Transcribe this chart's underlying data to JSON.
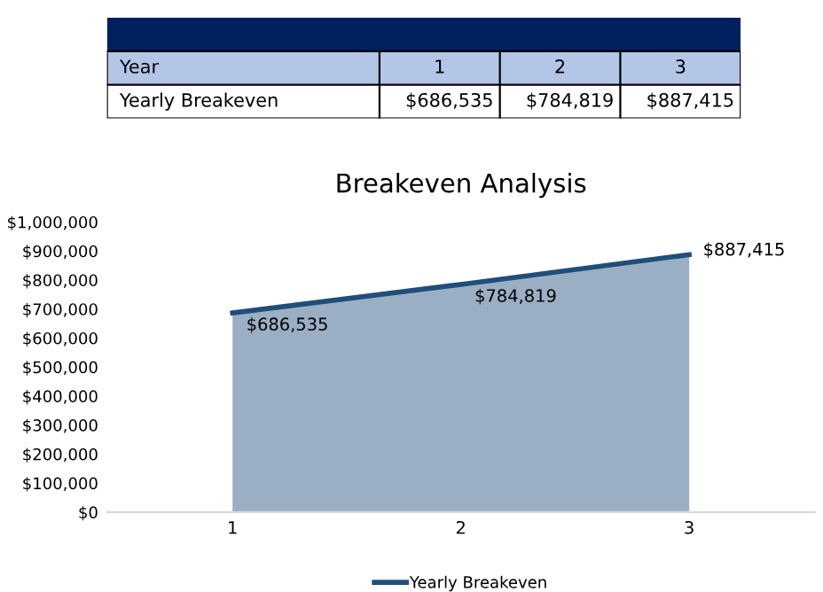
{
  "chart_data": {
    "type": "area",
    "title": "Breakeven Analysis",
    "categories": [
      "1",
      "2",
      "3"
    ],
    "series": [
      {
        "name": "Yearly Breakeven",
        "color": "#1f4e79",
        "values": [
          686535,
          784819,
          887415
        ],
        "value_labels": [
          "$686,535",
          "$784,819",
          "$887,415"
        ]
      }
    ],
    "ylim": [
      0,
      1000000
    ],
    "yticks": [
      {
        "value": 0,
        "label": "$0"
      },
      {
        "value": 100000,
        "label": "$100,000"
      },
      {
        "value": 200000,
        "label": "$200,000"
      },
      {
        "value": 300000,
        "label": "$300,000"
      },
      {
        "value": 400000,
        "label": "$400,000"
      },
      {
        "value": 500000,
        "label": "$500,000"
      },
      {
        "value": 600000,
        "label": "$600,000"
      },
      {
        "value": 700000,
        "label": "$700,000"
      },
      {
        "value": 800000,
        "label": "$800,000"
      },
      {
        "value": 900000,
        "label": "$900,000"
      },
      {
        "value": 1000000,
        "label": "$1,000,000"
      }
    ],
    "annotations": [
      "Year"
    ],
    "grid": false,
    "legend": "bottom"
  }
}
